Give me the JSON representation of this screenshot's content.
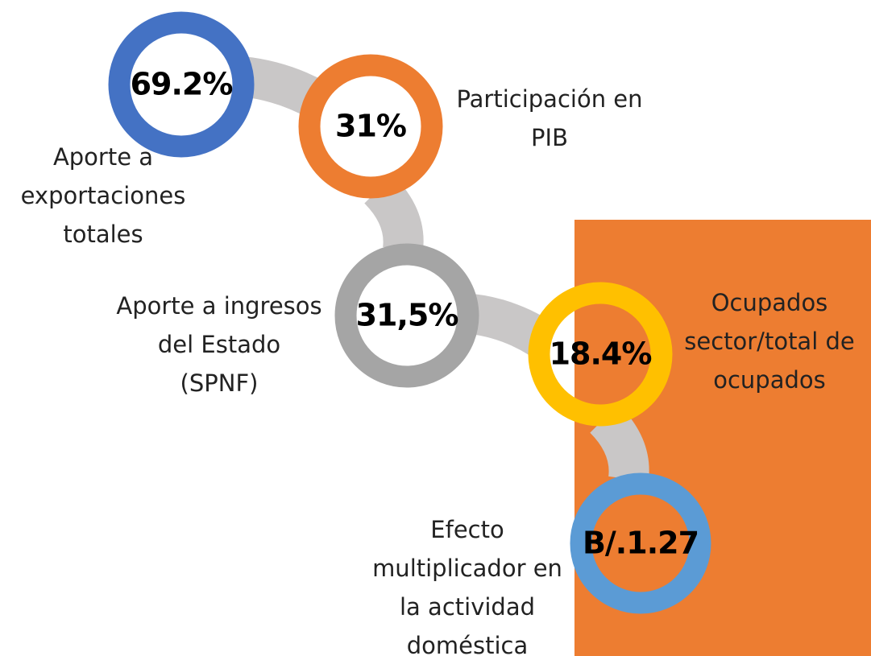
{
  "nodes": [
    {
      "value": "69.2%",
      "label_lines": [
        "Aporte a",
        "exportaciones",
        "totales"
      ],
      "color": "#4472c4"
    },
    {
      "value": "31%",
      "label_lines": [
        "Participación en",
        "PIB"
      ],
      "color": "#ed7d31"
    },
    {
      "value": "31,5%",
      "label_lines": [
        "Aporte a ingresos",
        "del Estado",
        "(SPNF)"
      ],
      "color": "#a5a5a5"
    },
    {
      "value": "18.4%",
      "label_lines": [
        "Ocupados",
        "sector/total de",
        "ocupados"
      ],
      "color": "#ffc000"
    },
    {
      "value": "B/.1.27",
      "label_lines": [
        "Efecto",
        "multiplicador en",
        "la actividad",
        "doméstica"
      ],
      "color": "#5b9bd5"
    }
  ]
}
